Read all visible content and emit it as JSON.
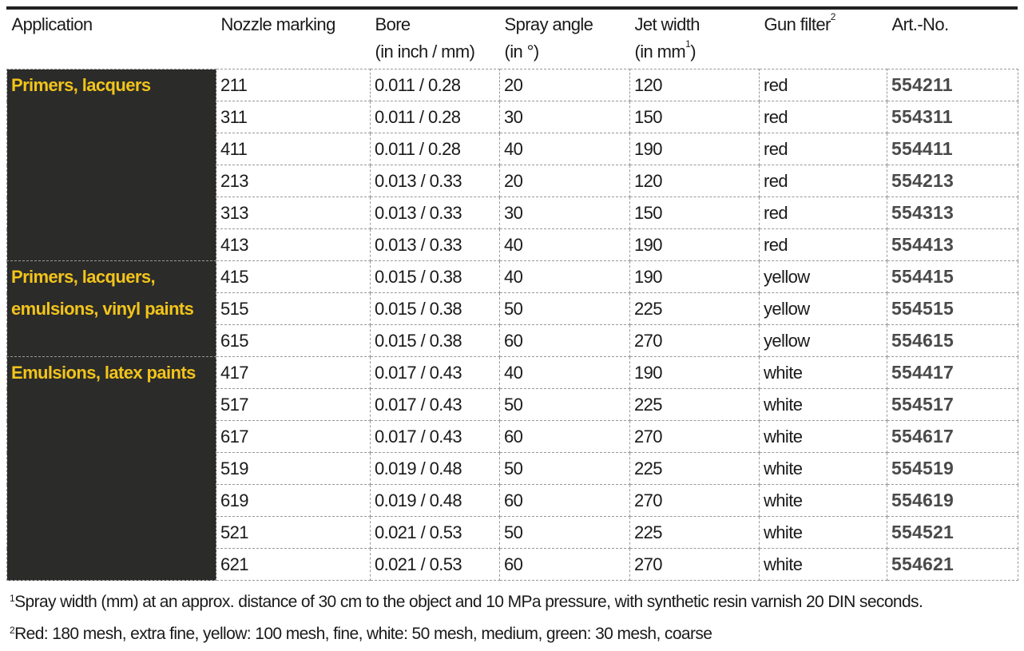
{
  "headers": [
    {
      "l1": "Application",
      "l2": ""
    },
    {
      "l1": "Nozzle marking",
      "l2": ""
    },
    {
      "l1": "Bore",
      "l2": "(in inch / mm)"
    },
    {
      "l1": "Spray angle",
      "l2": "(in °)"
    },
    {
      "l1": "Jet width",
      "l2": "(in mm",
      "sup2": "1",
      "close2": ")"
    },
    {
      "l1": "Gun filter",
      "sup1": "2",
      "l2": ""
    },
    {
      "l1": "Art.-No.",
      "l2": ""
    }
  ],
  "groups": [
    {
      "application": "Primers, lacquers",
      "rows": [
        [
          "211",
          "0.011 / 0.28",
          "20",
          "120",
          "red",
          "554211"
        ],
        [
          "311",
          "0.011 / 0.28",
          "30",
          "150",
          "red",
          "554311"
        ],
        [
          "411",
          "0.011 / 0.28",
          "40",
          "190",
          "red",
          "554411"
        ],
        [
          "213",
          "0.013 / 0.33",
          "20",
          "120",
          "red",
          "554213"
        ],
        [
          "313",
          "0.013 / 0.33",
          "30",
          "150",
          "red",
          "554313"
        ],
        [
          "413",
          "0.013 / 0.33",
          "40",
          "190",
          "red",
          "554413"
        ]
      ]
    },
    {
      "application": "Primers, lacquers, emulsions, vinyl paints",
      "rows": [
        [
          "415",
          "0.015 / 0.38",
          "40",
          "190",
          "yellow",
          "554415"
        ],
        [
          "515",
          "0.015 / 0.38",
          "50",
          "225",
          "yellow",
          "554515"
        ],
        [
          "615",
          "0.015 / 0.38",
          "60",
          "270",
          "yellow",
          "554615"
        ]
      ]
    },
    {
      "application": "Emulsions, latex paints",
      "rows": [
        [
          "417",
          "0.017 / 0.43",
          "40",
          "190",
          "white",
          "554417"
        ],
        [
          "517",
          "0.017 / 0.43",
          "50",
          "225",
          "white",
          "554517"
        ],
        [
          "617",
          "0.017 / 0.43",
          "60",
          "270",
          "white",
          "554617"
        ],
        [
          "519",
          "0.019 / 0.48",
          "50",
          "225",
          "white",
          "554519"
        ],
        [
          "619",
          "0.019 / 0.48",
          "60",
          "270",
          "white",
          "554619"
        ],
        [
          "521",
          "0.021 / 0.53",
          "50",
          "225",
          "white",
          "554521"
        ],
        [
          "621",
          "0.021 / 0.53",
          "60",
          "270",
          "white",
          "554621"
        ]
      ]
    }
  ],
  "footnotes": [
    {
      "mark": "1",
      "text": "Spray width (mm) at an approx. distance of 30 cm to the object and 10 MPa pressure, with synthetic resin varnish 20 DIN seconds."
    },
    {
      "mark": "2",
      "text": "Red: 180 mesh, extra fine, yellow: 100 mesh, fine, white: 50 mesh, medium, green: 30 mesh, coarse"
    }
  ],
  "colors": {
    "application_bg": "#2b2b2a",
    "application_text": "#f2c41a",
    "art_no_text": "#4a4a4a"
  }
}
